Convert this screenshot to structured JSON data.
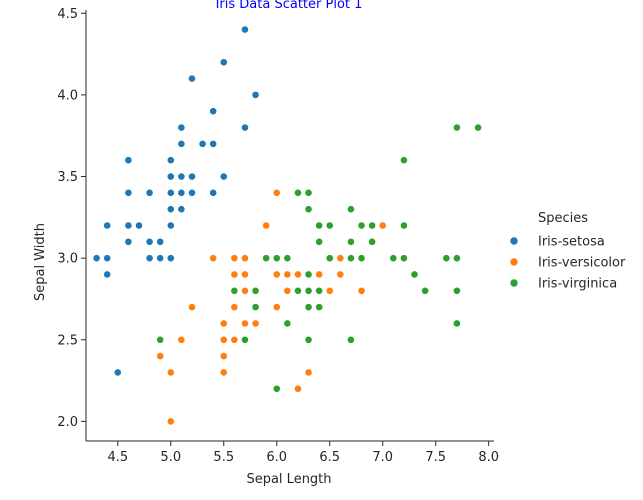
{
  "chart_data": {
    "type": "scatter",
    "title": "Iris Data Scatter Plot 1",
    "title_color": "#0000ff",
    "xlabel": "Sepal Length",
    "ylabel": "Sepal Width",
    "xlim": [
      4.2,
      8.05
    ],
    "ylim": [
      1.88,
      4.52
    ],
    "xticks": [
      "4.5",
      "5.0",
      "5.5",
      "6.0",
      "6.5",
      "7.0",
      "7.5",
      "8.0"
    ],
    "yticks": [
      "2.0",
      "2.5",
      "3.0",
      "3.5",
      "4.0",
      "4.5"
    ],
    "grid": false,
    "legend": {
      "title": "Species",
      "position": "right"
    },
    "series": [
      {
        "name": "Iris-setosa",
        "color": "#1f77b4",
        "points": [
          [
            5.1,
            3.5
          ],
          [
            4.9,
            3.0
          ],
          [
            4.7,
            3.2
          ],
          [
            4.6,
            3.1
          ],
          [
            5.0,
            3.6
          ],
          [
            5.4,
            3.9
          ],
          [
            4.6,
            3.4
          ],
          [
            5.0,
            3.4
          ],
          [
            4.4,
            2.9
          ],
          [
            4.9,
            3.1
          ],
          [
            5.4,
            3.7
          ],
          [
            4.8,
            3.4
          ],
          [
            4.8,
            3.0
          ],
          [
            4.3,
            3.0
          ],
          [
            5.8,
            4.0
          ],
          [
            5.7,
            4.4
          ],
          [
            5.4,
            3.9
          ],
          [
            5.1,
            3.5
          ],
          [
            5.7,
            3.8
          ],
          [
            5.1,
            3.8
          ],
          [
            5.4,
            3.4
          ],
          [
            5.1,
            3.7
          ],
          [
            4.6,
            3.6
          ],
          [
            5.1,
            3.3
          ],
          [
            4.8,
            3.4
          ],
          [
            5.0,
            3.0
          ],
          [
            5.0,
            3.4
          ],
          [
            5.2,
            3.5
          ],
          [
            5.2,
            3.4
          ],
          [
            4.7,
            3.2
          ],
          [
            4.8,
            3.1
          ],
          [
            5.4,
            3.4
          ],
          [
            5.2,
            4.1
          ],
          [
            5.5,
            4.2
          ],
          [
            4.9,
            3.1
          ],
          [
            5.0,
            3.2
          ],
          [
            5.5,
            3.5
          ],
          [
            4.9,
            3.1
          ],
          [
            4.4,
            3.0
          ],
          [
            5.1,
            3.4
          ],
          [
            5.0,
            3.5
          ],
          [
            4.5,
            2.3
          ],
          [
            4.4,
            3.2
          ],
          [
            5.0,
            3.5
          ],
          [
            5.1,
            3.8
          ],
          [
            4.8,
            3.0
          ],
          [
            5.1,
            3.8
          ],
          [
            4.6,
            3.2
          ],
          [
            5.3,
            3.7
          ],
          [
            5.0,
            3.3
          ]
        ]
      },
      {
        "name": "Iris-versicolor",
        "color": "#ff7f0e",
        "points": [
          [
            7.0,
            3.2
          ],
          [
            6.4,
            3.2
          ],
          [
            6.9,
            3.1
          ],
          [
            5.5,
            2.3
          ],
          [
            6.5,
            2.8
          ],
          [
            5.7,
            2.8
          ],
          [
            6.3,
            3.3
          ],
          [
            4.9,
            2.4
          ],
          [
            6.6,
            2.9
          ],
          [
            5.2,
            2.7
          ],
          [
            5.0,
            2.0
          ],
          [
            5.9,
            3.0
          ],
          [
            6.0,
            2.2
          ],
          [
            6.1,
            2.9
          ],
          [
            5.6,
            2.9
          ],
          [
            6.7,
            3.1
          ],
          [
            5.6,
            3.0
          ],
          [
            5.8,
            2.7
          ],
          [
            6.2,
            2.2
          ],
          [
            5.6,
            2.5
          ],
          [
            5.9,
            3.2
          ],
          [
            6.1,
            2.8
          ],
          [
            6.3,
            2.5
          ],
          [
            6.1,
            2.8
          ],
          [
            6.4,
            2.9
          ],
          [
            6.6,
            3.0
          ],
          [
            6.8,
            2.8
          ],
          [
            6.7,
            3.0
          ],
          [
            6.0,
            2.9
          ],
          [
            5.7,
            2.6
          ],
          [
            5.5,
            2.4
          ],
          [
            5.5,
            2.4
          ],
          [
            5.8,
            2.7
          ],
          [
            6.0,
            2.7
          ],
          [
            5.4,
            3.0
          ],
          [
            6.0,
            3.4
          ],
          [
            6.7,
            3.1
          ],
          [
            6.3,
            2.3
          ],
          [
            5.6,
            3.0
          ],
          [
            5.5,
            2.5
          ],
          [
            5.5,
            2.6
          ],
          [
            6.1,
            3.0
          ],
          [
            5.8,
            2.6
          ],
          [
            5.0,
            2.3
          ],
          [
            5.6,
            2.7
          ],
          [
            5.7,
            3.0
          ],
          [
            5.7,
            2.9
          ],
          [
            6.2,
            2.9
          ],
          [
            5.1,
            2.5
          ],
          [
            5.7,
            2.8
          ]
        ]
      },
      {
        "name": "Iris-virginica",
        "color": "#2ca02c",
        "points": [
          [
            6.3,
            3.3
          ],
          [
            5.8,
            2.7
          ],
          [
            7.1,
            3.0
          ],
          [
            6.3,
            2.9
          ],
          [
            6.5,
            3.0
          ],
          [
            7.6,
            3.0
          ],
          [
            4.9,
            2.5
          ],
          [
            7.3,
            2.9
          ],
          [
            6.7,
            2.5
          ],
          [
            7.2,
            3.6
          ],
          [
            6.5,
            3.2
          ],
          [
            6.4,
            2.7
          ],
          [
            6.8,
            3.0
          ],
          [
            5.7,
            2.5
          ],
          [
            5.8,
            2.8
          ],
          [
            6.4,
            3.2
          ],
          [
            6.5,
            3.0
          ],
          [
            7.7,
            3.8
          ],
          [
            7.7,
            2.6
          ],
          [
            6.0,
            2.2
          ],
          [
            6.9,
            3.2
          ],
          [
            5.6,
            2.8
          ],
          [
            7.7,
            2.8
          ],
          [
            6.3,
            2.7
          ],
          [
            6.7,
            3.3
          ],
          [
            7.2,
            3.2
          ],
          [
            6.2,
            2.8
          ],
          [
            6.1,
            3.0
          ],
          [
            6.4,
            2.8
          ],
          [
            7.2,
            3.0
          ],
          [
            7.4,
            2.8
          ],
          [
            7.9,
            3.8
          ],
          [
            6.4,
            2.8
          ],
          [
            6.3,
            2.8
          ],
          [
            6.1,
            2.6
          ],
          [
            7.7,
            3.0
          ],
          [
            6.3,
            3.4
          ],
          [
            6.4,
            3.1
          ],
          [
            6.0,
            3.0
          ],
          [
            6.9,
            3.1
          ],
          [
            6.7,
            3.1
          ],
          [
            6.9,
            3.1
          ],
          [
            5.8,
            2.7
          ],
          [
            6.8,
            3.2
          ],
          [
            6.7,
            3.3
          ],
          [
            6.7,
            3.0
          ],
          [
            6.3,
            2.5
          ],
          [
            6.5,
            3.0
          ],
          [
            6.2,
            3.4
          ],
          [
            5.9,
            3.0
          ]
        ]
      }
    ]
  }
}
